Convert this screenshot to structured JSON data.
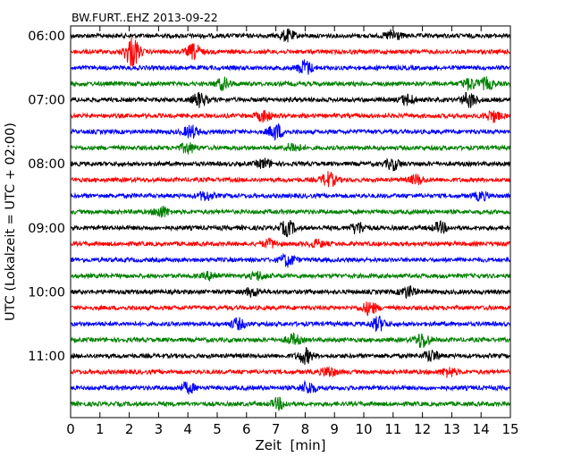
{
  "chart_data": {
    "type": "line",
    "title": "BW.FURT..EHZ 2013-09-22",
    "xlabel": "Zeit  [min]",
    "ylabel": "UTC (Lokalzeit = UTC + 02:00)",
    "xlim": [
      0,
      15
    ],
    "x_ticks": [
      "0",
      "1",
      "2",
      "3",
      "4",
      "5",
      "6",
      "7",
      "8",
      "9",
      "10",
      "11",
      "12",
      "13",
      "14",
      "15"
    ],
    "y_tick_labels": [
      "06:00",
      "07:00",
      "08:00",
      "09:00",
      "10:00",
      "11:00"
    ],
    "row_interval_min": 15,
    "start_time": "06:00",
    "trace_colors": [
      "#000000",
      "#ff0000",
      "#0000ff",
      "#008000"
    ],
    "series": [
      {
        "start": "06:00",
        "events": [
          [
            7.4,
            1.0
          ],
          [
            11.0,
            1.0
          ]
        ]
      },
      {
        "start": "06:15",
        "events": [
          [
            2.1,
            2.8
          ],
          [
            4.2,
            1.3
          ]
        ]
      },
      {
        "start": "06:30",
        "events": [
          [
            8.0,
            1.3
          ]
        ]
      },
      {
        "start": "06:45",
        "events": [
          [
            5.2,
            1.0
          ],
          [
            13.6,
            1.0
          ],
          [
            14.2,
            1.0
          ]
        ]
      },
      {
        "start": "07:00",
        "events": [
          [
            4.4,
            1.2
          ],
          [
            11.5,
            0.9
          ],
          [
            13.6,
            1.3
          ]
        ]
      },
      {
        "start": "07:15",
        "events": [
          [
            6.6,
            1.0
          ],
          [
            14.4,
            1.0
          ]
        ]
      },
      {
        "start": "07:30",
        "events": [
          [
            4.1,
            1.1
          ],
          [
            7.0,
            1.4
          ]
        ]
      },
      {
        "start": "07:45",
        "events": [
          [
            4.0,
            0.9
          ],
          [
            7.6,
            0.8
          ]
        ]
      },
      {
        "start": "08:00",
        "events": [
          [
            6.6,
            0.8
          ],
          [
            11.0,
            1.0
          ]
        ]
      },
      {
        "start": "08:15",
        "events": [
          [
            8.8,
            1.3
          ],
          [
            11.8,
            0.8
          ]
        ]
      },
      {
        "start": "08:30",
        "events": [
          [
            4.6,
            0.8
          ],
          [
            14.0,
            0.7
          ]
        ]
      },
      {
        "start": "08:45",
        "events": [
          [
            3.1,
            1.0
          ]
        ]
      },
      {
        "start": "09:00",
        "events": [
          [
            7.4,
            1.3
          ],
          [
            9.8,
            1.0
          ],
          [
            12.6,
            0.9
          ]
        ]
      },
      {
        "start": "09:15",
        "events": [
          [
            6.8,
            0.7
          ],
          [
            8.4,
            0.6
          ]
        ]
      },
      {
        "start": "09:30",
        "events": [
          [
            7.4,
            1.1
          ]
        ]
      },
      {
        "start": "09:45",
        "events": [
          [
            4.8,
            0.7
          ],
          [
            6.4,
            0.7
          ]
        ]
      },
      {
        "start": "10:00",
        "events": [
          [
            6.2,
            0.7
          ],
          [
            11.5,
            1.0
          ]
        ]
      },
      {
        "start": "10:15",
        "events": [
          [
            10.2,
            1.1
          ]
        ]
      },
      {
        "start": "10:30",
        "events": [
          [
            5.7,
            0.9
          ],
          [
            10.5,
            1.2
          ]
        ]
      },
      {
        "start": "10:45",
        "events": [
          [
            7.6,
            0.9
          ],
          [
            12.0,
            1.4
          ]
        ]
      },
      {
        "start": "11:00",
        "events": [
          [
            8.0,
            1.3
          ],
          [
            12.3,
            1.0
          ]
        ]
      },
      {
        "start": "11:15",
        "events": [
          [
            8.8,
            0.9
          ],
          [
            12.9,
            0.8
          ]
        ]
      },
      {
        "start": "11:30",
        "events": [
          [
            4.0,
            0.9
          ],
          [
            8.1,
            1.1
          ]
        ]
      },
      {
        "start": "11:45",
        "events": [
          [
            7.1,
            0.9
          ]
        ]
      }
    ]
  }
}
